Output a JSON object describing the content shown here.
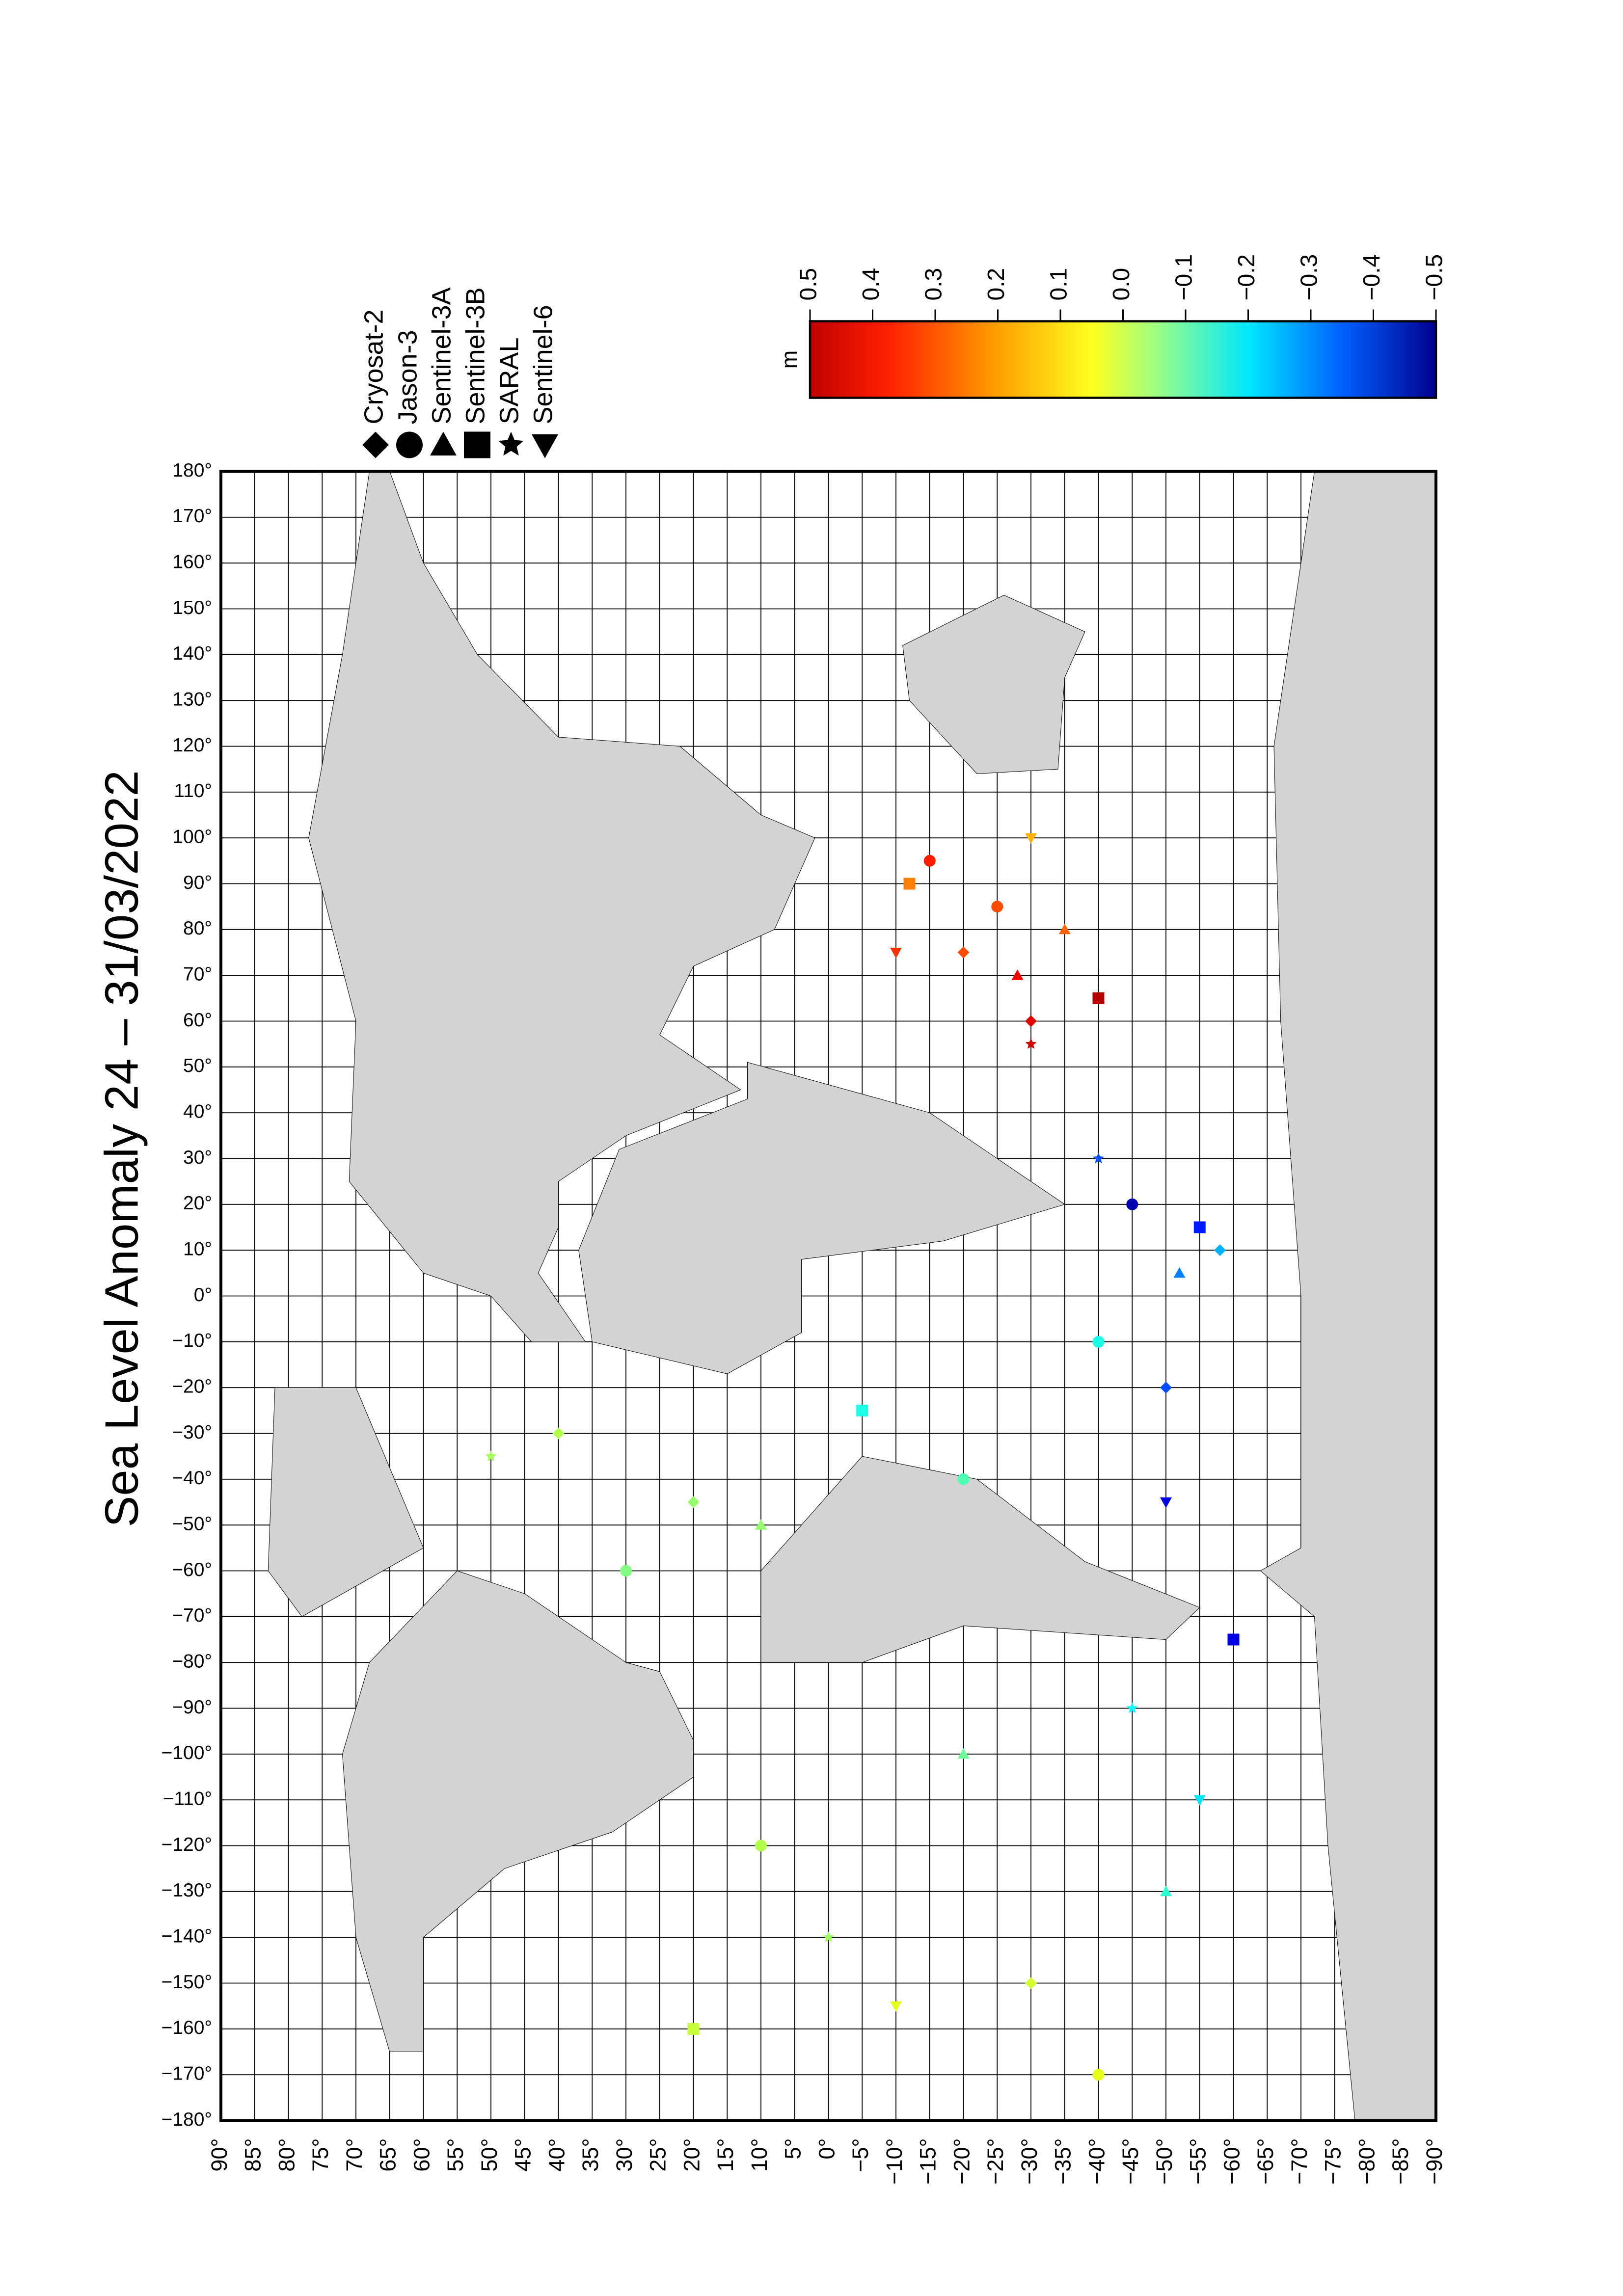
{
  "chart_data": {
    "type": "scatter",
    "title": "Sea Level Anomaly 24 – 31/03/2022",
    "colorbar_label": "m",
    "clim": [
      -0.5,
      0.5
    ],
    "colorbar_ticks": [
      0.5,
      0.4,
      0.3,
      0.2,
      0.1,
      {
        "value": 0,
        "label": "0.0"
      },
      {
        "value": -0.1,
        "label": "−0.1"
      },
      {
        "value": -0.2,
        "label": "−0.2"
      },
      {
        "value": -0.3,
        "label": "−0.3"
      },
      {
        "value": -0.4,
        "label": "−0.4"
      },
      {
        "value": -0.5,
        "label": "−0.5"
      }
    ],
    "xlim": [
      -180,
      180
    ],
    "ylim": [
      90,
      -90
    ],
    "grid": true,
    "xticks": [
      {
        "value": -180,
        "label": "−180°"
      },
      {
        "value": -170,
        "label": "−170°"
      },
      {
        "value": -160,
        "label": "−160°"
      },
      {
        "value": -150,
        "label": "−150°"
      },
      {
        "value": -140,
        "label": "−140°"
      },
      {
        "value": -130,
        "label": "−130°"
      },
      {
        "value": -120,
        "label": "−120°"
      },
      {
        "value": -110,
        "label": "−110°"
      },
      {
        "value": -100,
        "label": "−100°"
      },
      {
        "value": -90,
        "label": "−90°"
      },
      {
        "value": -80,
        "label": "−80°"
      },
      {
        "value": -70,
        "label": "−70°"
      },
      {
        "value": -60,
        "label": "−60°"
      },
      {
        "value": -50,
        "label": "−50°"
      },
      {
        "value": -40,
        "label": "−40°"
      },
      {
        "value": -30,
        "label": "−30°"
      },
      {
        "value": -20,
        "label": "−20°"
      },
      {
        "value": -10,
        "label": "−10°"
      },
      {
        "value": 0,
        "label": "0°"
      },
      {
        "value": 10,
        "label": "10°"
      },
      {
        "value": 20,
        "label": "20°"
      },
      {
        "value": 30,
        "label": "30°"
      },
      {
        "value": 40,
        "label": "40°"
      },
      {
        "value": 50,
        "label": "50°"
      },
      {
        "value": 60,
        "label": "60°"
      },
      {
        "value": 70,
        "label": "70°"
      },
      {
        "value": 80,
        "label": "80°"
      },
      {
        "value": 90,
        "label": "90°"
      },
      {
        "value": 100,
        "label": "100°"
      },
      {
        "value": 110,
        "label": "110°"
      },
      {
        "value": 120,
        "label": "120°"
      },
      {
        "value": 130,
        "label": "130°"
      },
      {
        "value": 140,
        "label": "140°"
      },
      {
        "value": 150,
        "label": "150°"
      },
      {
        "value": 160,
        "label": "160°"
      },
      {
        "value": 170,
        "label": "170°"
      },
      {
        "value": 180,
        "label": "180°"
      }
    ],
    "yticks": [
      {
        "value": 90,
        "label": "90°"
      },
      {
        "value": 85,
        "label": "85°"
      },
      {
        "value": 80,
        "label": "80°"
      },
      {
        "value": 75,
        "label": "75°"
      },
      {
        "value": 70,
        "label": "70°"
      },
      {
        "value": 65,
        "label": "65°"
      },
      {
        "value": 60,
        "label": "60°"
      },
      {
        "value": 55,
        "label": "55°"
      },
      {
        "value": 50,
        "label": "50°"
      },
      {
        "value": 45,
        "label": "45°"
      },
      {
        "value": 40,
        "label": "40°"
      },
      {
        "value": 35,
        "label": "35°"
      },
      {
        "value": 30,
        "label": "30°"
      },
      {
        "value": 25,
        "label": "25°"
      },
      {
        "value": 20,
        "label": "20°"
      },
      {
        "value": 15,
        "label": "15°"
      },
      {
        "value": 10,
        "label": "10°"
      },
      {
        "value": 5,
        "label": "5°"
      },
      {
        "value": 0,
        "label": "0°"
      },
      {
        "value": -5,
        "label": "−5°"
      },
      {
        "value": -10,
        "label": "−10°"
      },
      {
        "value": -15,
        "label": "−15°"
      },
      {
        "value": -20,
        "label": "−20°"
      },
      {
        "value": -25,
        "label": "−25°"
      },
      {
        "value": -30,
        "label": "−30°"
      },
      {
        "value": -35,
        "label": "−35°"
      },
      {
        "value": -40,
        "label": "−40°"
      },
      {
        "value": -45,
        "label": "−45°"
      },
      {
        "value": -50,
        "label": "−50°"
      },
      {
        "value": -55,
        "label": "−55°"
      },
      {
        "value": -60,
        "label": "−60°"
      },
      {
        "value": -65,
        "label": "−65°"
      },
      {
        "value": -70,
        "label": "−70°"
      },
      {
        "value": -75,
        "label": "−75°"
      },
      {
        "value": -80,
        "label": "−80°"
      },
      {
        "value": -85,
        "label": "−85°"
      },
      {
        "value": -90,
        "label": "−90°"
      }
    ],
    "series": [
      {
        "name": "Cryosat-2",
        "marker": "diamond",
        "x": [
          -30,
          -45,
          60,
          75,
          -20,
          -150,
          10
        ],
        "y": [
          40,
          20,
          -30,
          -20,
          -50,
          -30,
          -58
        ],
        "values": [
          0.05,
          0.02,
          0.4,
          0.3,
          -0.3,
          0.08,
          -0.2
        ]
      },
      {
        "name": "Jason-3",
        "marker": "circle",
        "x": [
          -60,
          -40,
          -10,
          20,
          85,
          95,
          -120,
          -170
        ],
        "y": [
          30,
          -20,
          -40,
          -45,
          -25,
          -15,
          10,
          -40
        ],
        "values": [
          0,
          -0.05,
          -0.1,
          -0.45,
          0.3,
          0.35,
          0.05,
          0.1
        ]
      },
      {
        "name": "Sentinel-3A",
        "marker": "triangle-up",
        "x": [
          -50,
          70,
          80,
          -130,
          -100,
          5
        ],
        "y": [
          10,
          -28,
          -35,
          -50,
          -20,
          -52
        ],
        "values": [
          0.02,
          0.38,
          0.28,
          -0.08,
          -0.02,
          -0.25
        ]
      },
      {
        "name": "Sentinel-3B",
        "marker": "square",
        "x": [
          -25,
          65,
          90,
          -75,
          -160,
          15
        ],
        "y": [
          -5,
          -40,
          -12,
          -60,
          20,
          -55
        ],
        "values": [
          -0.1,
          0.45,
          0.25,
          -0.4,
          0.07,
          -0.35
        ]
      },
      {
        "name": "SARAL",
        "marker": "star",
        "x": [
          -35,
          55,
          -140,
          -90,
          30
        ],
        "y": [
          50,
          -30,
          0,
          -45,
          -40
        ],
        "values": [
          0.04,
          0.42,
          0.03,
          -0.12,
          -0.3
        ]
      },
      {
        "name": "Sentinel-6",
        "marker": "triangle-down",
        "x": [
          -155,
          -110,
          -45,
          75,
          100
        ],
        "y": [
          -10,
          -55,
          -50,
          -10,
          -30
        ],
        "values": [
          0.1,
          -0.15,
          -0.4,
          0.33,
          0.2
        ]
      }
    ]
  }
}
